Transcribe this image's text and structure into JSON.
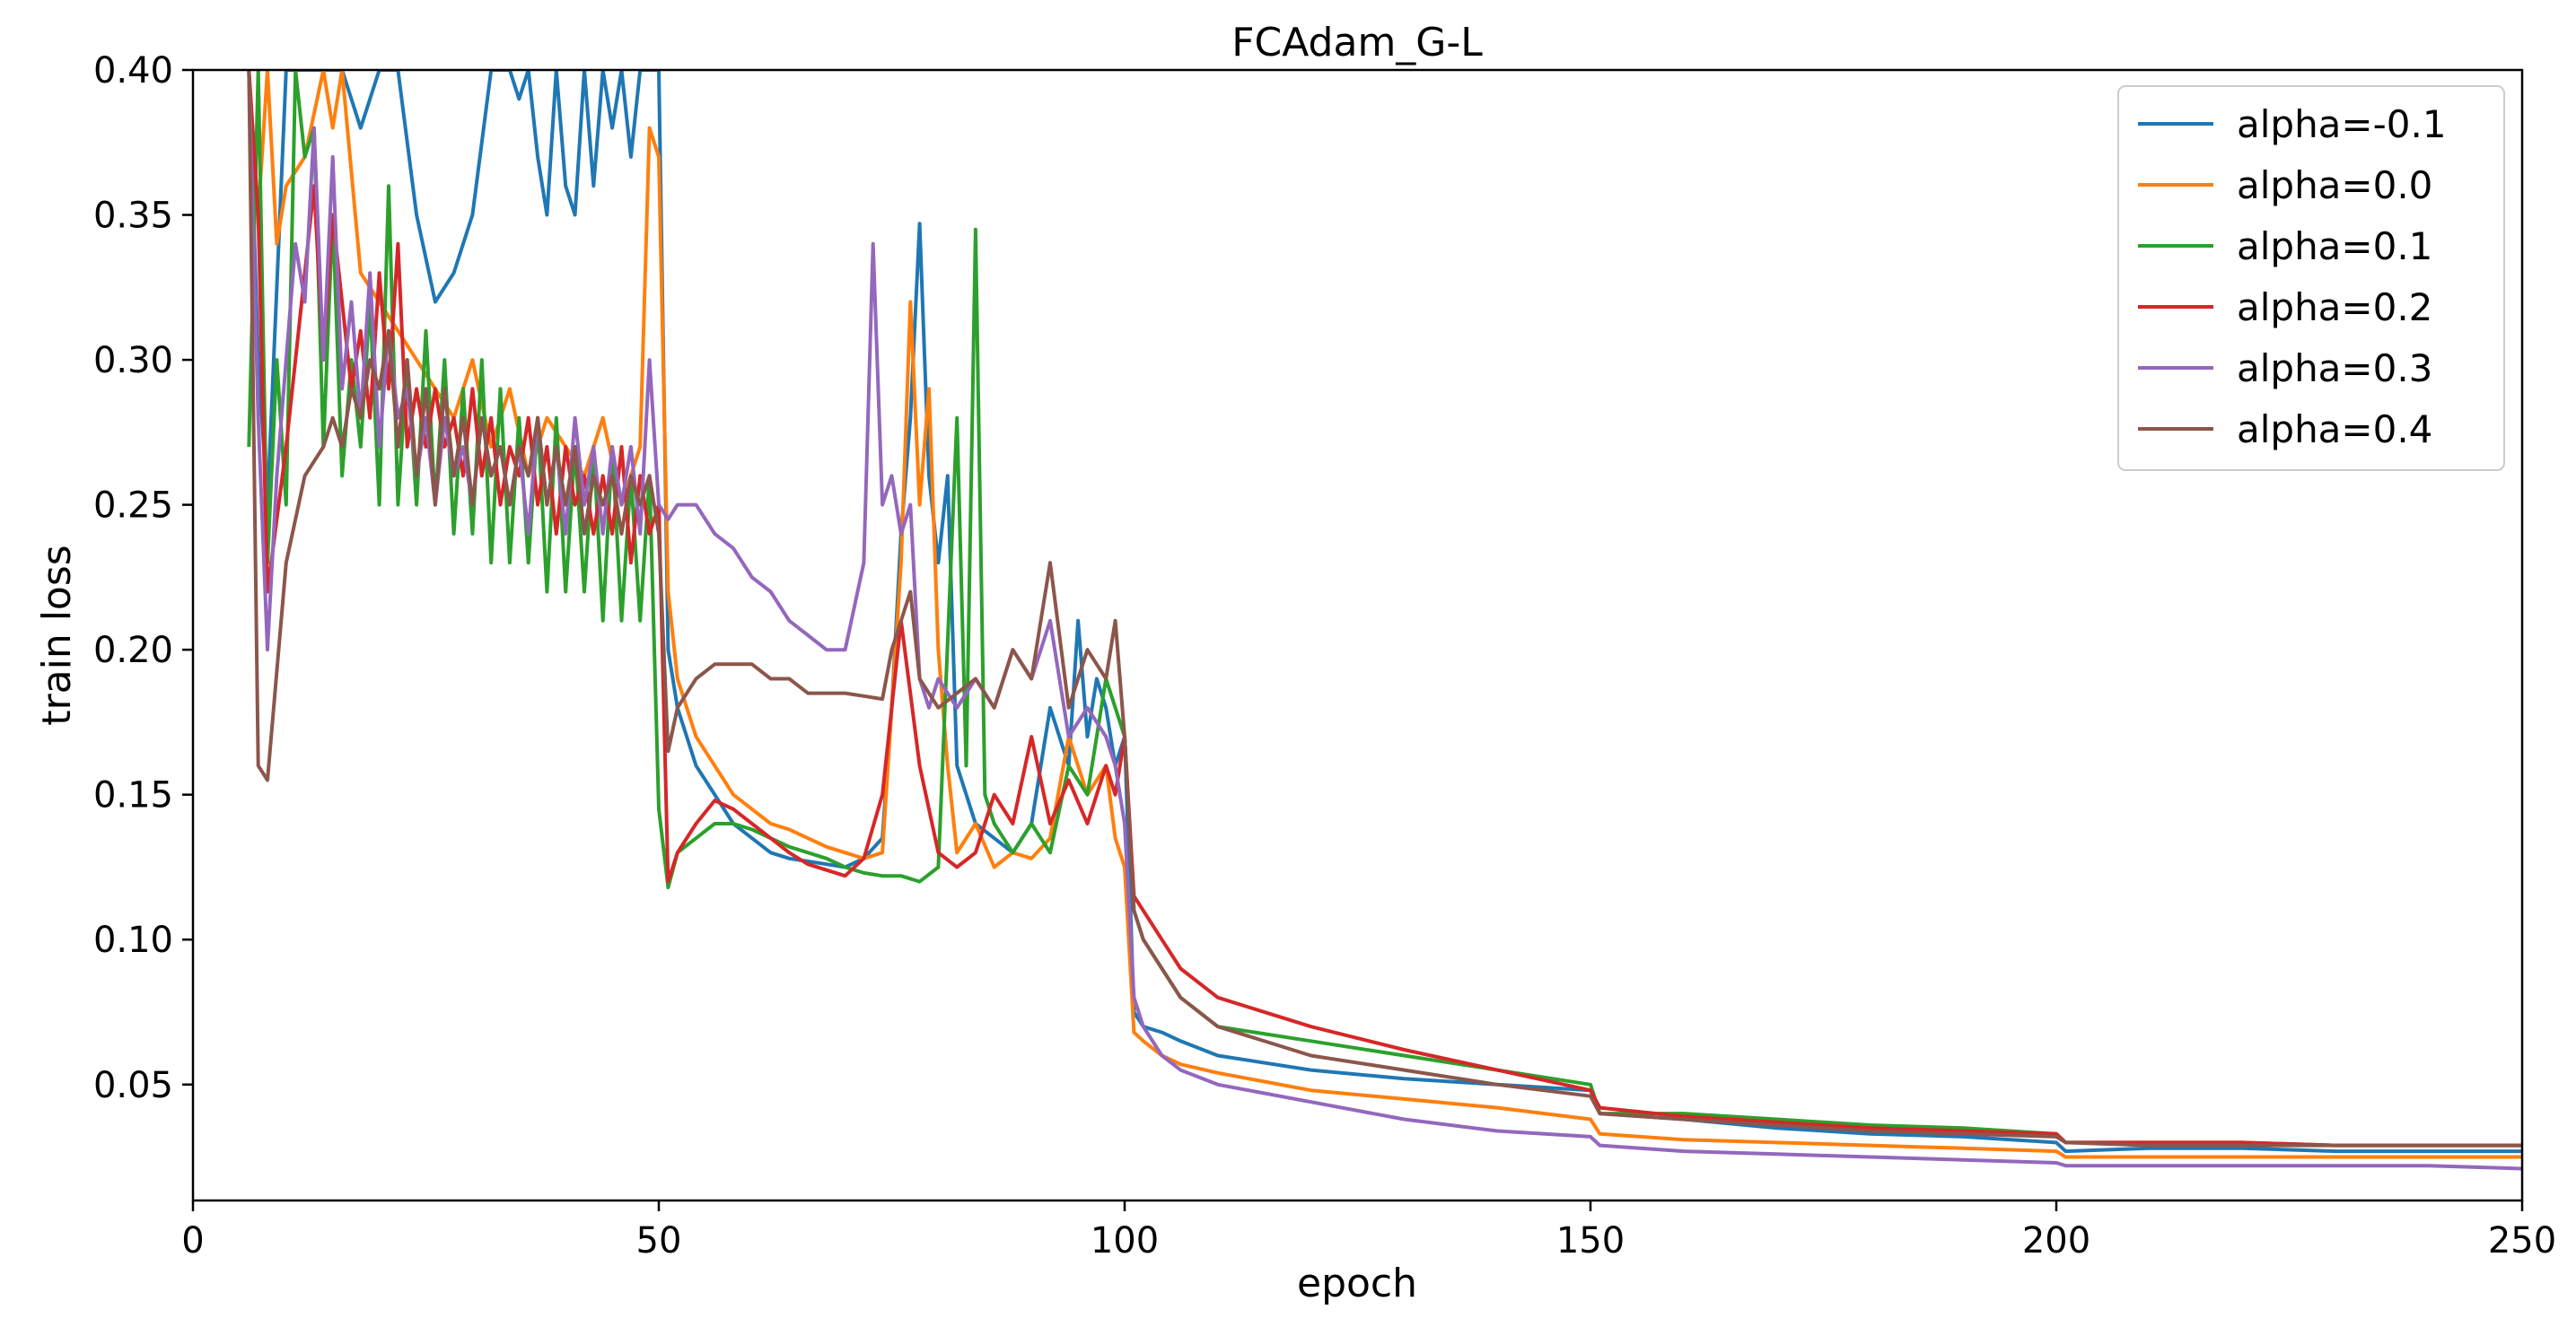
{
  "chart_data": {
    "type": "line",
    "title": "FCAdam_G-L",
    "xlabel": "epoch",
    "ylabel": "train loss",
    "xlim": [
      0,
      250
    ],
    "ylim": [
      0.01,
      0.4
    ],
    "xticks": [
      0,
      50,
      100,
      150,
      200,
      250
    ],
    "xtick_labels": [
      "0",
      "50",
      "100",
      "150",
      "200",
      "250"
    ],
    "yticks": [
      0.05,
      0.1,
      0.15,
      0.2,
      0.25,
      0.3,
      0.35,
      0.4
    ],
    "ytick_labels": [
      "0.05",
      "0.10",
      "0.15",
      "0.20",
      "0.25",
      "0.30",
      "0.35",
      "0.40"
    ],
    "grid": false,
    "legend_position": "top-right",
    "series": [
      {
        "name": "alpha=-0.1",
        "color": "#1f77b4",
        "x": [
          6,
          7,
          8,
          10,
          12,
          14,
          16,
          18,
          20,
          22,
          24,
          26,
          28,
          30,
          32,
          34,
          35,
          36,
          37,
          38,
          39,
          40,
          41,
          42,
          43,
          44,
          45,
          46,
          47,
          48,
          49,
          50,
          51,
          52,
          54,
          56,
          58,
          60,
          62,
          64,
          66,
          68,
          70,
          72,
          74,
          75,
          76,
          77,
          78,
          79,
          80,
          81,
          82,
          84,
          86,
          88,
          90,
          92,
          94,
          95,
          96,
          97,
          98,
          99,
          100,
          101,
          102,
          104,
          106,
          110,
          120,
          130,
          140,
          150,
          151,
          160,
          170,
          180,
          190,
          200,
          201,
          210,
          220,
          230,
          240,
          250
        ],
        "y": [
          0.4,
          0.3,
          0.25,
          0.4,
          0.4,
          0.4,
          0.4,
          0.38,
          0.4,
          0.4,
          0.35,
          0.32,
          0.33,
          0.35,
          0.4,
          0.4,
          0.39,
          0.4,
          0.37,
          0.35,
          0.4,
          0.36,
          0.35,
          0.4,
          0.36,
          0.4,
          0.38,
          0.4,
          0.37,
          0.4,
          0.4,
          0.4,
          0.2,
          0.18,
          0.16,
          0.15,
          0.14,
          0.135,
          0.13,
          0.128,
          0.127,
          0.126,
          0.125,
          0.128,
          0.135,
          0.18,
          0.24,
          0.28,
          0.347,
          0.26,
          0.23,
          0.26,
          0.16,
          0.14,
          0.135,
          0.13,
          0.14,
          0.18,
          0.16,
          0.21,
          0.17,
          0.19,
          0.18,
          0.16,
          0.17,
          0.075,
          0.07,
          0.068,
          0.065,
          0.06,
          0.055,
          0.052,
          0.05,
          0.048,
          0.04,
          0.038,
          0.035,
          0.033,
          0.032,
          0.03,
          0.027,
          0.028,
          0.028,
          0.027,
          0.027,
          0.027
        ]
      },
      {
        "name": "alpha=0.0",
        "color": "#ff7f0e",
        "x": [
          6,
          7,
          8,
          9,
          10,
          12,
          14,
          15,
          16,
          18,
          20,
          22,
          24,
          26,
          28,
          30,
          32,
          34,
          36,
          38,
          40,
          42,
          44,
          46,
          48,
          49,
          50,
          51,
          52,
          54,
          56,
          58,
          60,
          62,
          64,
          66,
          68,
          70,
          72,
          74,
          75,
          76,
          77,
          78,
          79,
          80,
          81,
          82,
          84,
          86,
          88,
          90,
          92,
          94,
          96,
          98,
          99,
          100,
          101,
          102,
          104,
          106,
          110,
          120,
          130,
          140,
          150,
          151,
          160,
          170,
          180,
          190,
          200,
          201,
          210,
          220,
          230,
          240,
          250
        ],
        "y": [
          0.4,
          0.35,
          0.4,
          0.34,
          0.36,
          0.37,
          0.4,
          0.38,
          0.4,
          0.33,
          0.32,
          0.31,
          0.3,
          0.29,
          0.28,
          0.3,
          0.27,
          0.29,
          0.26,
          0.28,
          0.27,
          0.26,
          0.28,
          0.25,
          0.27,
          0.38,
          0.37,
          0.22,
          0.19,
          0.17,
          0.16,
          0.15,
          0.145,
          0.14,
          0.138,
          0.135,
          0.132,
          0.13,
          0.128,
          0.13,
          0.18,
          0.23,
          0.32,
          0.25,
          0.29,
          0.2,
          0.16,
          0.13,
          0.14,
          0.125,
          0.13,
          0.128,
          0.135,
          0.17,
          0.15,
          0.16,
          0.135,
          0.125,
          0.068,
          0.065,
          0.06,
          0.057,
          0.054,
          0.048,
          0.045,
          0.042,
          0.038,
          0.033,
          0.031,
          0.03,
          0.029,
          0.028,
          0.027,
          0.025,
          0.025,
          0.025,
          0.025,
          0.025,
          0.025
        ]
      },
      {
        "name": "alpha=0.1",
        "color": "#2ca02c",
        "x": [
          6,
          7,
          8,
          9,
          10,
          11,
          12,
          13,
          14,
          15,
          16,
          17,
          18,
          19,
          20,
          21,
          22,
          23,
          24,
          25,
          26,
          27,
          28,
          29,
          30,
          31,
          32,
          33,
          34,
          35,
          36,
          37,
          38,
          39,
          40,
          41,
          42,
          43,
          44,
          45,
          46,
          47,
          48,
          49,
          50,
          51,
          52,
          54,
          56,
          58,
          60,
          62,
          64,
          66,
          68,
          70,
          72,
          74,
          76,
          78,
          80,
          82,
          83,
          84,
          85,
          86,
          88,
          90,
          92,
          94,
          96,
          98,
          99,
          100,
          101,
          102,
          104,
          106,
          110,
          120,
          130,
          140,
          150,
          151,
          160,
          170,
          180,
          190,
          200,
          201,
          210,
          220,
          230,
          240,
          250
        ],
        "y": [
          0.27,
          0.4,
          0.23,
          0.3,
          0.25,
          0.4,
          0.37,
          0.38,
          0.27,
          0.35,
          0.26,
          0.3,
          0.27,
          0.32,
          0.25,
          0.36,
          0.25,
          0.3,
          0.25,
          0.31,
          0.25,
          0.3,
          0.24,
          0.29,
          0.24,
          0.3,
          0.23,
          0.29,
          0.23,
          0.28,
          0.23,
          0.28,
          0.22,
          0.28,
          0.22,
          0.27,
          0.22,
          0.27,
          0.21,
          0.27,
          0.21,
          0.26,
          0.21,
          0.26,
          0.145,
          0.118,
          0.13,
          0.135,
          0.14,
          0.14,
          0.138,
          0.135,
          0.132,
          0.13,
          0.128,
          0.125,
          0.123,
          0.122,
          0.122,
          0.12,
          0.125,
          0.28,
          0.16,
          0.345,
          0.15,
          0.14,
          0.13,
          0.14,
          0.13,
          0.16,
          0.15,
          0.19,
          0.18,
          0.17,
          0.11,
          0.1,
          0.09,
          0.08,
          0.07,
          0.065,
          0.06,
          0.055,
          0.05,
          0.04,
          0.04,
          0.038,
          0.036,
          0.035,
          0.033,
          0.03,
          0.03,
          0.03,
          0.029,
          0.029,
          0.029
        ]
      },
      {
        "name": "alpha=0.2",
        "color": "#d62728",
        "x": [
          6,
          7,
          8,
          10,
          12,
          13,
          14,
          15,
          16,
          17,
          18,
          19,
          20,
          21,
          22,
          23,
          24,
          25,
          26,
          27,
          28,
          29,
          30,
          31,
          32,
          33,
          34,
          35,
          36,
          37,
          38,
          39,
          40,
          41,
          42,
          43,
          44,
          45,
          46,
          47,
          48,
          49,
          50,
          51,
          52,
          54,
          56,
          58,
          60,
          62,
          64,
          66,
          68,
          70,
          72,
          74,
          76,
          78,
          80,
          82,
          84,
          86,
          88,
          90,
          92,
          94,
          96,
          98,
          99,
          100,
          101,
          102,
          104,
          106,
          110,
          120,
          130,
          140,
          150,
          151,
          160,
          170,
          180,
          190,
          200,
          201,
          210,
          220,
          230,
          240,
          250
        ],
        "y": [
          0.4,
          0.35,
          0.22,
          0.27,
          0.33,
          0.36,
          0.3,
          0.35,
          0.32,
          0.29,
          0.31,
          0.28,
          0.33,
          0.29,
          0.34,
          0.27,
          0.29,
          0.27,
          0.29,
          0.27,
          0.28,
          0.26,
          0.29,
          0.26,
          0.28,
          0.25,
          0.27,
          0.26,
          0.28,
          0.25,
          0.27,
          0.24,
          0.27,
          0.25,
          0.26,
          0.24,
          0.26,
          0.24,
          0.27,
          0.23,
          0.26,
          0.24,
          0.25,
          0.12,
          0.13,
          0.14,
          0.148,
          0.145,
          0.14,
          0.135,
          0.13,
          0.126,
          0.124,
          0.122,
          0.128,
          0.15,
          0.21,
          0.16,
          0.13,
          0.125,
          0.13,
          0.15,
          0.14,
          0.17,
          0.14,
          0.155,
          0.14,
          0.16,
          0.15,
          0.17,
          0.115,
          0.11,
          0.1,
          0.09,
          0.08,
          0.07,
          0.062,
          0.055,
          0.048,
          0.042,
          0.039,
          0.037,
          0.035,
          0.034,
          0.033,
          0.03,
          0.03,
          0.03,
          0.029,
          0.029,
          0.029
        ]
      },
      {
        "name": "alpha=0.3",
        "color": "#9467bd",
        "x": [
          6,
          7,
          8,
          9,
          10,
          11,
          12,
          13,
          14,
          15,
          16,
          17,
          18,
          19,
          20,
          21,
          22,
          23,
          24,
          25,
          26,
          27,
          28,
          29,
          30,
          31,
          32,
          33,
          34,
          35,
          36,
          37,
          38,
          39,
          40,
          41,
          42,
          43,
          44,
          45,
          46,
          47,
          48,
          49,
          50,
          51,
          52,
          54,
          56,
          58,
          60,
          62,
          64,
          66,
          68,
          70,
          72,
          73,
          74,
          75,
          76,
          77,
          78,
          79,
          80,
          82,
          84,
          86,
          88,
          90,
          92,
          94,
          96,
          98,
          99,
          100,
          101,
          102,
          104,
          106,
          110,
          120,
          130,
          140,
          150,
          151,
          160,
          170,
          180,
          190,
          200,
          201,
          210,
          220,
          230,
          240,
          250
        ],
        "y": [
          0.4,
          0.28,
          0.2,
          0.26,
          0.3,
          0.34,
          0.32,
          0.38,
          0.3,
          0.37,
          0.29,
          0.32,
          0.28,
          0.33,
          0.27,
          0.31,
          0.28,
          0.29,
          0.26,
          0.28,
          0.25,
          0.28,
          0.26,
          0.27,
          0.25,
          0.28,
          0.26,
          0.27,
          0.25,
          0.27,
          0.24,
          0.28,
          0.25,
          0.27,
          0.24,
          0.28,
          0.25,
          0.27,
          0.24,
          0.27,
          0.25,
          0.27,
          0.24,
          0.3,
          0.25,
          0.245,
          0.25,
          0.25,
          0.24,
          0.235,
          0.225,
          0.22,
          0.21,
          0.205,
          0.2,
          0.2,
          0.23,
          0.34,
          0.25,
          0.26,
          0.24,
          0.25,
          0.19,
          0.18,
          0.19,
          0.18,
          0.19,
          0.18,
          0.2,
          0.19,
          0.21,
          0.17,
          0.18,
          0.17,
          0.16,
          0.14,
          0.08,
          0.07,
          0.06,
          0.055,
          0.05,
          0.044,
          0.038,
          0.034,
          0.032,
          0.029,
          0.027,
          0.026,
          0.025,
          0.024,
          0.023,
          0.022,
          0.022,
          0.022,
          0.022,
          0.022,
          0.021
        ]
      },
      {
        "name": "alpha=0.4",
        "color": "#8c564b",
        "x": [
          6,
          7,
          8,
          10,
          12,
          13,
          14,
          15,
          16,
          17,
          18,
          19,
          20,
          21,
          22,
          23,
          24,
          25,
          26,
          27,
          28,
          29,
          30,
          31,
          32,
          33,
          34,
          35,
          36,
          37,
          38,
          39,
          40,
          41,
          42,
          43,
          44,
          45,
          46,
          47,
          48,
          49,
          50,
          51,
          52,
          54,
          56,
          58,
          60,
          62,
          64,
          66,
          68,
          70,
          72,
          74,
          75,
          76,
          77,
          78,
          80,
          82,
          84,
          86,
          88,
          90,
          92,
          94,
          96,
          98,
          99,
          100,
          101,
          102,
          104,
          106,
          110,
          120,
          130,
          140,
          150,
          151,
          160,
          170,
          180,
          190,
          200,
          201,
          210,
          220,
          230,
          240,
          250
        ],
        "y": [
          0.4,
          0.16,
          0.155,
          0.23,
          0.26,
          0.265,
          0.27,
          0.28,
          0.27,
          0.29,
          0.28,
          0.3,
          0.29,
          0.31,
          0.27,
          0.3,
          0.26,
          0.29,
          0.25,
          0.29,
          0.26,
          0.28,
          0.25,
          0.28,
          0.26,
          0.27,
          0.25,
          0.27,
          0.26,
          0.28,
          0.25,
          0.27,
          0.25,
          0.27,
          0.24,
          0.26,
          0.25,
          0.26,
          0.24,
          0.26,
          0.25,
          0.26,
          0.24,
          0.165,
          0.18,
          0.19,
          0.195,
          0.195,
          0.195,
          0.19,
          0.19,
          0.185,
          0.185,
          0.185,
          0.184,
          0.183,
          0.2,
          0.21,
          0.22,
          0.19,
          0.18,
          0.185,
          0.19,
          0.18,
          0.2,
          0.19,
          0.23,
          0.18,
          0.2,
          0.19,
          0.21,
          0.17,
          0.11,
          0.1,
          0.09,
          0.08,
          0.07,
          0.06,
          0.055,
          0.05,
          0.046,
          0.04,
          0.038,
          0.036,
          0.034,
          0.033,
          0.032,
          0.03,
          0.029,
          0.029,
          0.029,
          0.029,
          0.029
        ]
      }
    ]
  }
}
